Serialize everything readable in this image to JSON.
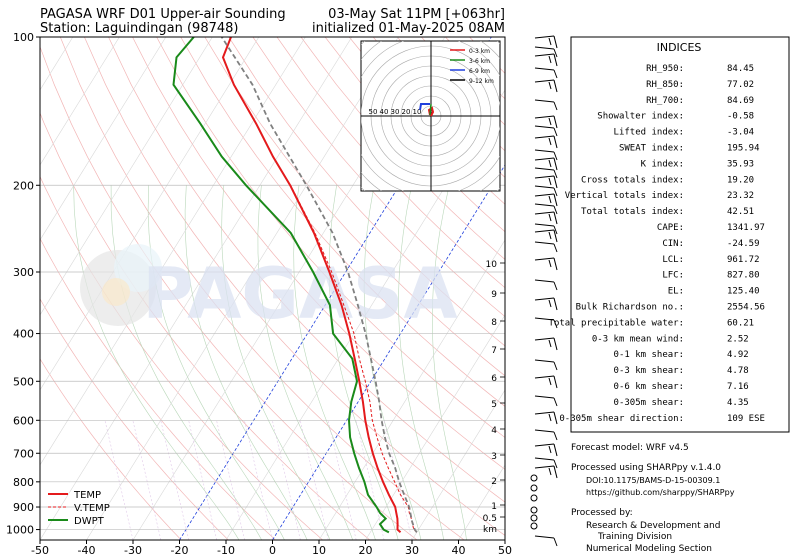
{
  "header": {
    "title_left": "PAGASA WRF D01 Upper-air Sounding",
    "station": "Station: Laguindingan (98748)",
    "valid_time": "03-May Sat 11PM [+063hr]",
    "init_time": "initialized 01-May-2025 08AM"
  },
  "watermark": "PAGASA",
  "skewt": {
    "x_ticks": [
      -50,
      -40,
      -30,
      -20,
      -10,
      0,
      10,
      20,
      30,
      40,
      50
    ],
    "p_ticks": [
      100,
      200,
      300,
      400,
      500,
      600,
      700,
      800,
      900,
      1000
    ],
    "km_ticks": [
      "10",
      "9",
      "8",
      "7",
      "6",
      "5",
      "4",
      "3",
      "2",
      "1",
      "0.5",
      "km"
    ],
    "legend": [
      {
        "label": "TEMP",
        "color": "#e41a1c",
        "style": "solid"
      },
      {
        "label": "V.TEMP",
        "color": "#e41a1c",
        "style": "dashed"
      },
      {
        "label": "DWPT",
        "color": "#1a8a1a",
        "style": "solid"
      }
    ]
  },
  "hodograph": {
    "legend": [
      {
        "label": "0-3 km",
        "color": "#e41a1c"
      },
      {
        "label": "3-6 km",
        "color": "#1a8a1a"
      },
      {
        "label": "6-9 km",
        "color": "#1f3fdc"
      },
      {
        "label": "9-12 km",
        "color": "#000000"
      }
    ],
    "ring_labels": [
      "50",
      "40",
      "30",
      "20",
      "10"
    ]
  },
  "chart_data": {
    "type": "line",
    "title": "PAGASA WRF D01 Upper-air Sounding",
    "xlabel": "",
    "ylabel": "",
    "xlim": [
      -50,
      50
    ],
    "ylim": [
      1050,
      100
    ],
    "y_scale": "log",
    "series": [
      {
        "name": "TEMP",
        "color": "#e41a1c",
        "p": [
          1013,
          1000,
          975,
          950,
          925,
          900,
          850,
          800,
          750,
          700,
          650,
          600,
          550,
          500,
          450,
          400,
          350,
          300,
          250,
          200,
          175,
          150,
          125,
          110,
          100
        ],
        "t": [
          26.5,
          25.5,
          24.8,
          24.0,
          23.0,
          22.0,
          19.0,
          16.0,
          13.0,
          10.0,
          7.0,
          4.0,
          1.0,
          -2.5,
          -6.5,
          -11.0,
          -16.5,
          -23.5,
          -32.0,
          -43.5,
          -51.0,
          -59.0,
          -69.0,
          -75.0,
          -76.0
        ]
      },
      {
        "name": "V.TEMP",
        "color": "#e41a1c",
        "p": [
          1013,
          1000,
          975,
          950,
          925,
          900,
          850,
          800,
          750,
          700,
          650,
          600,
          550,
          500,
          450,
          400,
          350,
          300,
          250,
          200
        ],
        "t": [
          30.0,
          29.0,
          28.0,
          27.0,
          25.8,
          24.8,
          21.5,
          18.5,
          15.3,
          12.0,
          8.8,
          5.5,
          2.5,
          -1.2,
          -5.5,
          -10.0,
          -16.0,
          -23.0,
          -31.8,
          -43.4
        ]
      },
      {
        "name": "DWPT",
        "color": "#1a8a1a",
        "p": [
          1013,
          1000,
          975,
          950,
          925,
          900,
          850,
          800,
          750,
          700,
          650,
          600,
          550,
          500,
          450,
          400,
          350,
          300,
          250,
          200,
          175,
          150,
          125,
          110,
          100
        ],
        "t": [
          24.0,
          22.5,
          21.0,
          21.5,
          19.5,
          18.0,
          14.5,
          12.0,
          9.0,
          6.0,
          3.0,
          0.5,
          -1.5,
          -3.0,
          -7.0,
          -14.5,
          -19.0,
          -27.0,
          -37.0,
          -53.0,
          -62.0,
          -71.0,
          -82.0,
          -85.0,
          -84.0
        ]
      },
      {
        "name": "Parcel",
        "color": "#808080",
        "p": [
          1013,
          1000,
          962,
          900,
          850,
          800,
          750,
          700,
          650,
          600,
          550,
          500,
          450,
          400,
          350,
          300,
          250,
          200,
          150,
          125,
          100
        ],
        "t": [
          30.0,
          29.2,
          27.5,
          25.0,
          22.3,
          19.5,
          16.8,
          13.5,
          10.5,
          7.5,
          4.5,
          1.0,
          -3.0,
          -7.5,
          -13.0,
          -19.5,
          -28.0,
          -40.0,
          -56.0,
          -65.0,
          -78.0
        ]
      }
    ]
  },
  "indices": {
    "heading": "INDICES",
    "rows": [
      {
        "label": "RH_950:",
        "value": "84.45"
      },
      {
        "label": "RH_850:",
        "value": "77.02"
      },
      {
        "label": "RH_700:",
        "value": "84.69"
      },
      {
        "label": "Showalter index:",
        "value": "-0.58"
      },
      {
        "label": "Lifted index:",
        "value": "-3.04"
      },
      {
        "label": "SWEAT index:",
        "value": "195.94"
      },
      {
        "label": "K index:",
        "value": "35.93"
      },
      {
        "label": "Cross totals index:",
        "value": "19.20"
      },
      {
        "label": "Vertical totals index:",
        "value": "23.32"
      },
      {
        "label": "Total totals index:",
        "value": "42.51"
      },
      {
        "label": "CAPE:",
        "value": "1341.97"
      },
      {
        "label": "CIN:",
        "value": "-24.59"
      },
      {
        "label": "LCL:",
        "value": "961.72"
      },
      {
        "label": "LFC:",
        "value": "827.80"
      },
      {
        "label": "EL:",
        "value": "125.40"
      },
      {
        "label": "Bulk Richardson no.:",
        "value": "2554.56"
      },
      {
        "label": "Total precipitable water:",
        "value": "60.21"
      },
      {
        "label": "0-3 km mean wind:",
        "value": "2.52"
      },
      {
        "label": "0-1 km shear:",
        "value": "4.92"
      },
      {
        "label": "0-3 km shear:",
        "value": "4.78"
      },
      {
        "label": "0-6 km shear:",
        "value": "7.16"
      },
      {
        "label": "0-305m shear:",
        "value": "4.35"
      },
      {
        "label": "0-305m shear direction:",
        "value": "109 ESE"
      }
    ]
  },
  "footer": {
    "model": "Forecast model: WRF v4.5",
    "processed_using": "Processed using SHARPpy v.1.4.0",
    "doi": "DOI:10.1175/BAMS-D-15-00309.1",
    "url": "https://github.com/sharppy/SHARPpy",
    "processed_by": "Processed by:",
    "org_line1": "Research & Development and",
    "org_line2": "Training Division",
    "org_line3": "Numerical Modeling Section"
  }
}
